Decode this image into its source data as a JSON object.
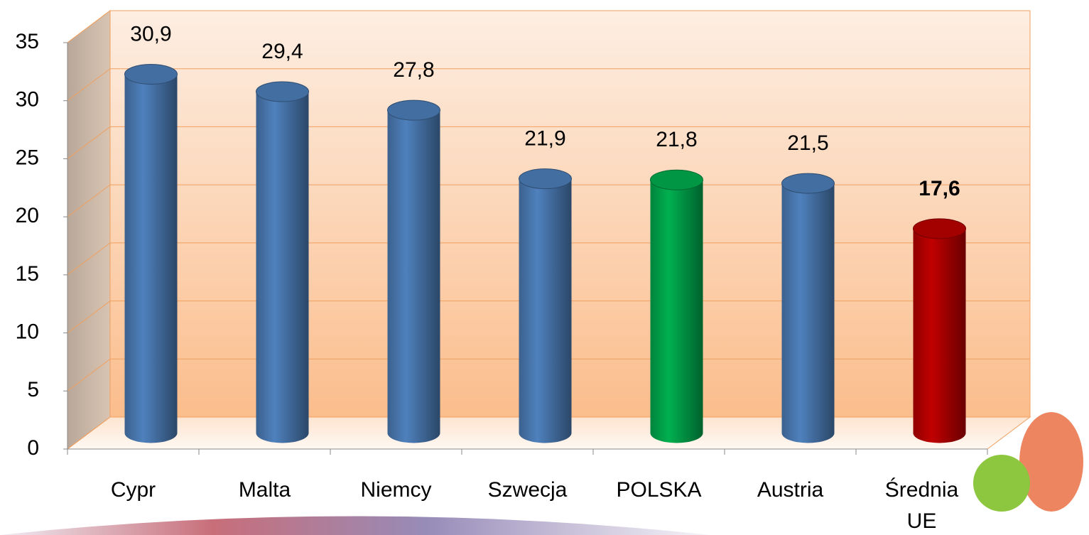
{
  "chart_data": {
    "type": "bar",
    "categories": [
      "Cypr",
      "Malta",
      "Niemcy",
      "Szwecja",
      "POLSKA",
      "Austria",
      "Średnia UE"
    ],
    "values": [
      30.9,
      29.4,
      27.8,
      21.9,
      21.8,
      21.5,
      17.6
    ],
    "value_labels": [
      "30,9",
      "29,4",
      "27,8",
      "21,9",
      "21,8",
      "21,5",
      "17,6"
    ],
    "colors": [
      "#4f81bd",
      "#4f81bd",
      "#4f81bd",
      "#4f81bd",
      "#00b050",
      "#4f81bd",
      "#c00000"
    ],
    "ylim": [
      0,
      35
    ],
    "yticks": [
      0,
      5,
      10,
      15,
      20,
      25,
      30,
      35
    ],
    "grid": true
  }
}
